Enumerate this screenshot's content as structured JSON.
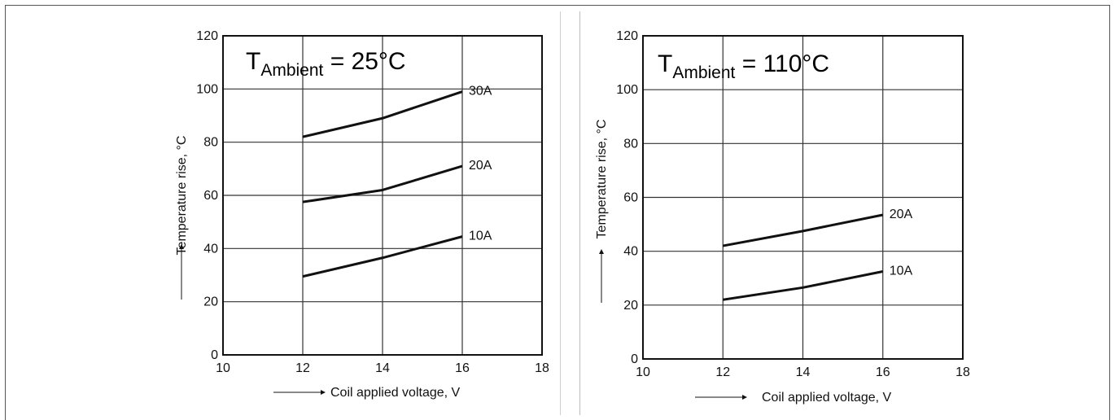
{
  "chart_data": [
    {
      "type": "line",
      "annotation": {
        "main": "T",
        "sub": "Ambient",
        "rest": " = 25°C"
      },
      "xlabel": "Coil applied voltage, V",
      "ylabel": "Temperature rise, °C",
      "xlim": [
        10,
        18
      ],
      "ylim": [
        0,
        120
      ],
      "x_ticks": [
        10,
        12,
        14,
        16,
        18
      ],
      "y_ticks": [
        0,
        20,
        40,
        60,
        80,
        100,
        120
      ],
      "grid": true,
      "series": [
        {
          "name": "30A",
          "x": [
            12,
            14,
            16
          ],
          "y": [
            82,
            89,
            99
          ]
        },
        {
          "name": "20A",
          "x": [
            12,
            14,
            16
          ],
          "y": [
            57.5,
            62,
            71
          ]
        },
        {
          "name": "10A",
          "x": [
            12,
            14,
            16
          ],
          "y": [
            29.5,
            36.5,
            44.5
          ]
        }
      ]
    },
    {
      "type": "line",
      "annotation": {
        "main": "T",
        "sub": "Ambient",
        "rest": " = 110°C"
      },
      "xlabel": "Coil applied voltage, V",
      "ylabel": "Temperature rise, °C",
      "xlim": [
        10,
        18
      ],
      "ylim": [
        0,
        120
      ],
      "x_ticks": [
        10,
        12,
        14,
        16,
        18
      ],
      "y_ticks": [
        0,
        20,
        40,
        60,
        80,
        100,
        120
      ],
      "grid": true,
      "series": [
        {
          "name": "20A",
          "x": [
            12,
            14,
            16
          ],
          "y": [
            42,
            47.5,
            53.5
          ]
        },
        {
          "name": "10A",
          "x": [
            12,
            14,
            16
          ],
          "y": [
            22,
            26.5,
            32.5
          ]
        }
      ]
    }
  ]
}
